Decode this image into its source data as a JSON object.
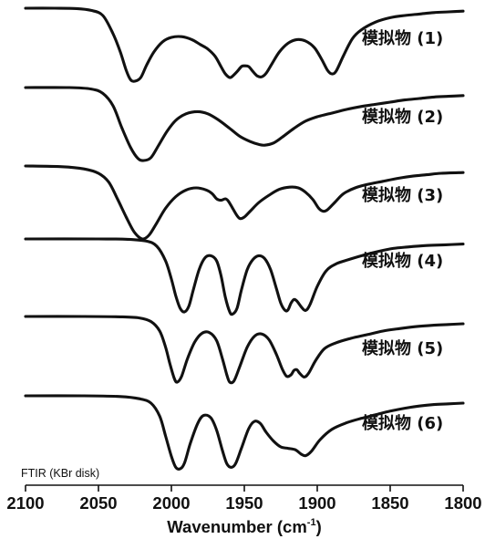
{
  "chart_data": {
    "type": "line",
    "annotation": "FTIR  (KBr disk)",
    "xlabel": "Wavenumber (cm",
    "xlabel_sup": "-1",
    "xlabel_end": ")",
    "ylabel": "",
    "xlim": [
      2100,
      1800
    ],
    "x_reversed": true,
    "x_ticks": [
      2100,
      2050,
      2000,
      1950,
      1900,
      1850,
      1800
    ],
    "series": [
      {
        "name": "模拟物 (1)",
        "points": [
          [
            2100,
            0
          ],
          [
            2080,
            0
          ],
          [
            2065,
            -0.005
          ],
          [
            2055,
            -0.03
          ],
          [
            2047,
            -0.1
          ],
          [
            2040,
            -0.35
          ],
          [
            2035,
            -0.6
          ],
          [
            2031,
            -0.85
          ],
          [
            2028,
            -0.98
          ],
          [
            2025,
            -1.0
          ],
          [
            2021,
            -0.95
          ],
          [
            2017,
            -0.78
          ],
          [
            2012,
            -0.6
          ],
          [
            2006,
            -0.46
          ],
          [
            2000,
            -0.4
          ],
          [
            1993,
            -0.39
          ],
          [
            1986,
            -0.43
          ],
          [
            1980,
            -0.5
          ],
          [
            1975,
            -0.56
          ],
          [
            1970,
            -0.66
          ],
          [
            1966,
            -0.8
          ],
          [
            1963,
            -0.9
          ],
          [
            1960,
            -0.95
          ],
          [
            1958,
            -0.93
          ],
          [
            1955,
            -0.87
          ],
          [
            1952,
            -0.8
          ],
          [
            1950,
            -0.79
          ],
          [
            1947,
            -0.8
          ],
          [
            1944,
            -0.87
          ],
          [
            1941,
            -0.93
          ],
          [
            1938,
            -0.94
          ],
          [
            1935,
            -0.89
          ],
          [
            1931,
            -0.76
          ],
          [
            1926,
            -0.6
          ],
          [
            1920,
            -0.48
          ],
          [
            1914,
            -0.43
          ],
          [
            1908,
            -0.45
          ],
          [
            1902,
            -0.54
          ],
          [
            1897,
            -0.7
          ],
          [
            1893,
            -0.85
          ],
          [
            1890,
            -0.9
          ],
          [
            1887,
            -0.86
          ],
          [
            1882,
            -0.65
          ],
          [
            1876,
            -0.42
          ],
          [
            1870,
            -0.3
          ],
          [
            1860,
            -0.19
          ],
          [
            1850,
            -0.13
          ],
          [
            1840,
            -0.1
          ],
          [
            1830,
            -0.08
          ],
          [
            1820,
            -0.06
          ],
          [
            1810,
            -0.05
          ],
          [
            1800,
            -0.04
          ]
        ]
      },
      {
        "name": "模拟物 (2)",
        "points": [
          [
            2100,
            0
          ],
          [
            2070,
            0
          ],
          [
            2055,
            -0.02
          ],
          [
            2047,
            -0.08
          ],
          [
            2040,
            -0.25
          ],
          [
            2034,
            -0.55
          ],
          [
            2028,
            -0.82
          ],
          [
            2023,
            -0.97
          ],
          [
            2019,
            -1.0
          ],
          [
            2014,
            -0.96
          ],
          [
            2009,
            -0.8
          ],
          [
            2003,
            -0.6
          ],
          [
            1997,
            -0.45
          ],
          [
            1990,
            -0.36
          ],
          [
            1982,
            -0.33
          ],
          [
            1975,
            -0.36
          ],
          [
            1968,
            -0.44
          ],
          [
            1960,
            -0.56
          ],
          [
            1953,
            -0.67
          ],
          [
            1946,
            -0.74
          ],
          [
            1940,
            -0.78
          ],
          [
            1936,
            -0.79
          ],
          [
            1930,
            -0.76
          ],
          [
            1924,
            -0.68
          ],
          [
            1916,
            -0.56
          ],
          [
            1908,
            -0.46
          ],
          [
            1900,
            -0.4
          ],
          [
            1892,
            -0.36
          ],
          [
            1880,
            -0.3
          ],
          [
            1870,
            -0.26
          ],
          [
            1860,
            -0.23
          ],
          [
            1850,
            -0.2
          ],
          [
            1840,
            -0.17
          ],
          [
            1830,
            -0.15
          ],
          [
            1820,
            -0.13
          ],
          [
            1810,
            -0.12
          ],
          [
            1800,
            -0.11
          ]
        ]
      },
      {
        "name": "模拟物 (3)",
        "points": [
          [
            2100,
            0
          ],
          [
            2075,
            -0.01
          ],
          [
            2060,
            -0.04
          ],
          [
            2050,
            -0.1
          ],
          [
            2043,
            -0.22
          ],
          [
            2037,
            -0.45
          ],
          [
            2031,
            -0.7
          ],
          [
            2026,
            -0.89
          ],
          [
            2022,
            -0.98
          ],
          [
            2019,
            -1.0
          ],
          [
            2015,
            -0.94
          ],
          [
            2010,
            -0.78
          ],
          [
            2004,
            -0.58
          ],
          [
            1997,
            -0.42
          ],
          [
            1990,
            -0.33
          ],
          [
            1983,
            -0.3
          ],
          [
            1976,
            -0.33
          ],
          [
            1972,
            -0.38
          ],
          [
            1969,
            -0.45
          ],
          [
            1966,
            -0.47
          ],
          [
            1963,
            -0.45
          ],
          [
            1961,
            -0.48
          ],
          [
            1958,
            -0.58
          ],
          [
            1955,
            -0.68
          ],
          [
            1953,
            -0.72
          ],
          [
            1950,
            -0.7
          ],
          [
            1946,
            -0.62
          ],
          [
            1940,
            -0.5
          ],
          [
            1933,
            -0.4
          ],
          [
            1926,
            -0.32
          ],
          [
            1919,
            -0.29
          ],
          [
            1913,
            -0.3
          ],
          [
            1908,
            -0.36
          ],
          [
            1903,
            -0.46
          ],
          [
            1899,
            -0.58
          ],
          [
            1896,
            -0.62
          ],
          [
            1893,
            -0.6
          ],
          [
            1888,
            -0.5
          ],
          [
            1882,
            -0.38
          ],
          [
            1874,
            -0.3
          ],
          [
            1865,
            -0.25
          ],
          [
            1855,
            -0.21
          ],
          [
            1845,
            -0.17
          ],
          [
            1835,
            -0.14
          ],
          [
            1825,
            -0.12
          ],
          [
            1815,
            -0.1
          ],
          [
            1800,
            -0.09
          ]
        ]
      },
      {
        "name": "模拟物 (4)",
        "points": [
          [
            2100,
            0
          ],
          [
            2050,
            0
          ],
          [
            2030,
            -0.005
          ],
          [
            2017,
            -0.03
          ],
          [
            2010,
            -0.1
          ],
          [
            2004,
            -0.3
          ],
          [
            2000,
            -0.55
          ],
          [
            1997,
            -0.78
          ],
          [
            1994,
            -0.95
          ],
          [
            1991,
            -1.0
          ],
          [
            1988,
            -0.92
          ],
          [
            1985,
            -0.7
          ],
          [
            1981,
            -0.42
          ],
          [
            1977,
            -0.26
          ],
          [
            1973,
            -0.23
          ],
          [
            1969,
            -0.3
          ],
          [
            1966,
            -0.5
          ],
          [
            1963,
            -0.8
          ],
          [
            1960,
            -1.0
          ],
          [
            1958,
            -1.03
          ],
          [
            1955,
            -0.95
          ],
          [
            1952,
            -0.7
          ],
          [
            1948,
            -0.42
          ],
          [
            1944,
            -0.28
          ],
          [
            1940,
            -0.23
          ],
          [
            1936,
            -0.27
          ],
          [
            1932,
            -0.42
          ],
          [
            1928,
            -0.68
          ],
          [
            1925,
            -0.88
          ],
          [
            1922,
            -0.98
          ],
          [
            1920,
            -0.97
          ],
          [
            1918,
            -0.88
          ],
          [
            1916,
            -0.83
          ],
          [
            1914,
            -0.85
          ],
          [
            1911,
            -0.93
          ],
          [
            1908,
            -0.98
          ],
          [
            1905,
            -0.9
          ],
          [
            1900,
            -0.65
          ],
          [
            1894,
            -0.44
          ],
          [
            1887,
            -0.34
          ],
          [
            1878,
            -0.28
          ],
          [
            1868,
            -0.22
          ],
          [
            1858,
            -0.17
          ],
          [
            1848,
            -0.13
          ],
          [
            1838,
            -0.11
          ],
          [
            1825,
            -0.09
          ],
          [
            1812,
            -0.08
          ],
          [
            1800,
            -0.07
          ]
        ]
      },
      {
        "name": "模拟物 (5)",
        "points": [
          [
            2100,
            0
          ],
          [
            2060,
            0
          ],
          [
            2035,
            -0.005
          ],
          [
            2022,
            -0.02
          ],
          [
            2014,
            -0.07
          ],
          [
            2008,
            -0.2
          ],
          [
            2004,
            -0.42
          ],
          [
            2001,
            -0.65
          ],
          [
            1998,
            -0.85
          ],
          [
            1996,
            -0.9
          ],
          [
            1993,
            -0.82
          ],
          [
            1989,
            -0.58
          ],
          [
            1984,
            -0.35
          ],
          [
            1979,
            -0.23
          ],
          [
            1974,
            -0.22
          ],
          [
            1969,
            -0.33
          ],
          [
            1965,
            -0.58
          ],
          [
            1962,
            -0.8
          ],
          [
            1960,
            -0.9
          ],
          [
            1957,
            -0.88
          ],
          [
            1953,
            -0.68
          ],
          [
            1948,
            -0.42
          ],
          [
            1943,
            -0.27
          ],
          [
            1938,
            -0.24
          ],
          [
            1933,
            -0.32
          ],
          [
            1928,
            -0.52
          ],
          [
            1924,
            -0.72
          ],
          [
            1921,
            -0.82
          ],
          [
            1918,
            -0.8
          ],
          [
            1916,
            -0.74
          ],
          [
            1914,
            -0.73
          ],
          [
            1912,
            -0.78
          ],
          [
            1909,
            -0.83
          ],
          [
            1906,
            -0.78
          ],
          [
            1901,
            -0.6
          ],
          [
            1895,
            -0.44
          ],
          [
            1887,
            -0.36
          ],
          [
            1877,
            -0.3
          ],
          [
            1866,
            -0.25
          ],
          [
            1855,
            -0.2
          ],
          [
            1845,
            -0.17
          ],
          [
            1833,
            -0.14
          ],
          [
            1820,
            -0.12
          ],
          [
            1810,
            -0.11
          ],
          [
            1800,
            -0.1
          ]
        ]
      },
      {
        "name": "模拟物 (6)",
        "points": [
          [
            2100,
            0
          ],
          [
            2060,
            0
          ],
          [
            2035,
            -0.01
          ],
          [
            2022,
            -0.04
          ],
          [
            2014,
            -0.1
          ],
          [
            2008,
            -0.28
          ],
          [
            2004,
            -0.55
          ],
          [
            2000,
            -0.83
          ],
          [
            1997,
            -0.98
          ],
          [
            1994,
            -1.0
          ],
          [
            1991,
            -0.92
          ],
          [
            1987,
            -0.65
          ],
          [
            1982,
            -0.38
          ],
          [
            1978,
            -0.27
          ],
          [
            1973,
            -0.3
          ],
          [
            1969,
            -0.47
          ],
          [
            1965,
            -0.75
          ],
          [
            1962,
            -0.93
          ],
          [
            1959,
            -0.98
          ],
          [
            1956,
            -0.93
          ],
          [
            1952,
            -0.72
          ],
          [
            1947,
            -0.45
          ],
          [
            1943,
            -0.35
          ],
          [
            1939,
            -0.38
          ],
          [
            1935,
            -0.5
          ],
          [
            1930,
            -0.62
          ],
          [
            1925,
            -0.7
          ],
          [
            1920,
            -0.72
          ],
          [
            1915,
            -0.74
          ],
          [
            1911,
            -0.8
          ],
          [
            1908,
            -0.82
          ],
          [
            1904,
            -0.76
          ],
          [
            1898,
            -0.6
          ],
          [
            1890,
            -0.46
          ],
          [
            1880,
            -0.37
          ],
          [
            1870,
            -0.31
          ],
          [
            1860,
            -0.26
          ],
          [
            1850,
            -0.21
          ],
          [
            1840,
            -0.17
          ],
          [
            1830,
            -0.14
          ],
          [
            1820,
            -0.12
          ],
          [
            1810,
            -0.11
          ],
          [
            1800,
            -0.1
          ]
        ]
      }
    ]
  }
}
